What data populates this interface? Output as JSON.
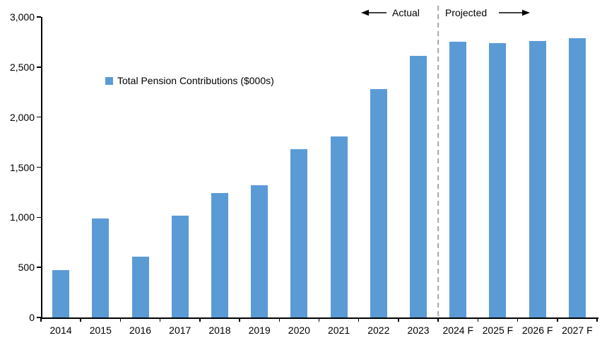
{
  "chart_data": {
    "type": "bar",
    "title": "",
    "legend_label": "Total Pension Contributions ($000s)",
    "categories": [
      "2014",
      "2015",
      "2016",
      "2017",
      "2018",
      "2019",
      "2020",
      "2021",
      "2022",
      "2023",
      "2024 F",
      "2025 F",
      "2026 F",
      "2027 F"
    ],
    "values": [
      470,
      990,
      610,
      1020,
      1240,
      1320,
      1680,
      1810,
      2280,
      2610,
      2750,
      2740,
      2760,
      2790
    ],
    "ylabel": "",
    "xlabel": "",
    "ylim": [
      0,
      3000
    ],
    "yticks": [
      0,
      500,
      1000,
      1500,
      2000,
      2500,
      3000
    ],
    "ytick_labels": [
      "0",
      "500",
      "1,000",
      "1,500",
      "2,000",
      "2,500",
      "3,000"
    ],
    "grid": false,
    "legend_position": "inside-upper-left",
    "bar_color": "#5B9BD5",
    "axis_color": "#000000",
    "separator": {
      "boundary_index": 10,
      "style": "dashed",
      "color": "#A6A6A6"
    },
    "annotations": {
      "actual": "Actual",
      "projected": "Projected"
    }
  }
}
